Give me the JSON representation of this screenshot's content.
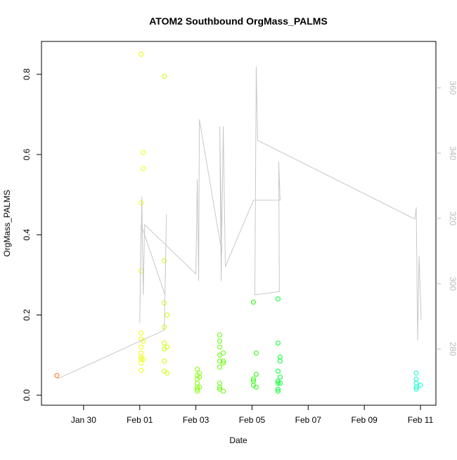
{
  "chart_data": {
    "type": "scatter",
    "title": "ATOM2 Southbound OrgMass_PALMS",
    "xlabel": "Date",
    "ylabel": "OrgMass_PALMS",
    "xlim": [
      28.5,
      42.55
    ],
    "ylim": [
      -0.025,
      0.882
    ],
    "y2lim": [
      262.8,
      374.2
    ],
    "xticks": [
      {
        "value": 30,
        "label": "Jan 30"
      },
      {
        "value": 32,
        "label": "Feb 01"
      },
      {
        "value": 34,
        "label": "Feb 03"
      },
      {
        "value": 36,
        "label": "Feb 05"
      },
      {
        "value": 38,
        "label": "Feb 07"
      },
      {
        "value": 40,
        "label": "Feb 09"
      },
      {
        "value": 42,
        "label": "Feb 11"
      }
    ],
    "yticks": [
      {
        "value": 0,
        "label": "0.0"
      },
      0.2,
      0.4,
      0.6,
      0.8
    ],
    "y2ticks": [
      280,
      300,
      320,
      340,
      360
    ],
    "y2color": "#bbbbbb",
    "series": [
      {
        "color": "#ff6a00",
        "x": [
          29.05
        ],
        "values": [
          0.049
        ]
      },
      {
        "color": "#e8ff00",
        "x": [
          32.05,
          32.05,
          32.05,
          32.05,
          32.05,
          32.05,
          32.05,
          32.05,
          32.05,
          32.05,
          32.05,
          32.125,
          32.125,
          32.125,
          32.125
        ],
        "values": [
          0.85,
          0.48,
          0.31,
          0.155,
          0.14,
          0.12,
          0.105,
          0.095,
          0.09,
          0.08,
          0.062,
          0.605,
          0.565,
          0.135,
          0.09
        ]
      },
      {
        "color": "#c8ff00",
        "x": [
          32.875,
          32.875,
          32.875,
          32.875,
          32.875,
          32.875,
          32.875,
          32.875,
          32.975,
          32.975,
          32.975
        ],
        "values": [
          0.795,
          0.335,
          0.23,
          0.17,
          0.13,
          0.115,
          0.085,
          0.06,
          0.2,
          0.12,
          0.055
        ]
      },
      {
        "color": "#80ff00",
        "x": [
          34.05,
          34.05,
          34.05,
          34.05,
          34.05,
          34.05,
          34.05,
          34.125,
          34.125,
          34.125
        ],
        "values": [
          0.065,
          0.05,
          0.04,
          0.03,
          0.02,
          0.015,
          0.01,
          0.055,
          0.045,
          0.02
        ]
      },
      {
        "color": "#5cff00",
        "x": [
          34.85,
          34.85,
          34.85,
          34.85,
          34.85,
          34.85,
          34.85,
          34.85,
          34.85,
          34.975,
          34.975,
          34.975,
          34.975
        ],
        "values": [
          0.15,
          0.135,
          0.12,
          0.1,
          0.085,
          0.07,
          0.03,
          0.02,
          0.015,
          0.105,
          0.085,
          0.08,
          0.01
        ]
      },
      {
        "color": "#22ff00",
        "x": [
          36.05,
          36.05,
          36.05,
          36.05,
          36.15,
          36.15,
          36.15
        ],
        "values": [
          0.232,
          0.04,
          0.035,
          0.025,
          0.105,
          0.052,
          0.02
        ]
      },
      {
        "color": "#00ff2a",
        "x": [
          36.925,
          36.925,
          36.925,
          36.925,
          36.925,
          36.925,
          36.925,
          37.0,
          37.0,
          37.0,
          37.0
        ],
        "values": [
          0.24,
          0.13,
          0.06,
          0.035,
          0.03,
          0.015,
          0.01,
          0.095,
          0.085,
          0.045,
          0.03
        ]
      },
      {
        "color": "#00ffcc",
        "x": [
          41.85,
          41.85,
          41.85,
          41.85,
          41.85,
          42.0
        ],
        "values": [
          0.055,
          0.04,
          0.03,
          0.02,
          0.015,
          0.025
        ]
      },
      {
        "type": "line",
        "axis": "y2",
        "color": "#c8c8c8",
        "x": [
          29.05,
          32.875,
          32.95,
          32.9,
          32.05,
          32.0,
          32.075,
          32.125,
          32.175,
          34.0,
          34.05,
          34.1,
          34.125,
          34.925,
          34.85,
          34.9,
          34.975,
          35.05,
          36.05,
          37.0,
          36.95,
          36.975,
          36.1,
          36.15,
          36.2,
          41.8,
          41.85,
          41.9,
          41.95,
          42.025
        ],
        "values": [
          270.8,
          285.8,
          321.3,
          296.6,
          318.1,
          288.0,
          326.7,
          296.6,
          318.1,
          303.0,
          332.0,
          300.9,
          350.3,
          309.5,
          348.2,
          300.9,
          348.2,
          305.2,
          325.6,
          325.6,
          337.4,
          297.6,
          296.6,
          366.5,
          343.9,
          319.8,
          323.4,
          282.6,
          308.4,
          289.0
        ]
      }
    ]
  }
}
